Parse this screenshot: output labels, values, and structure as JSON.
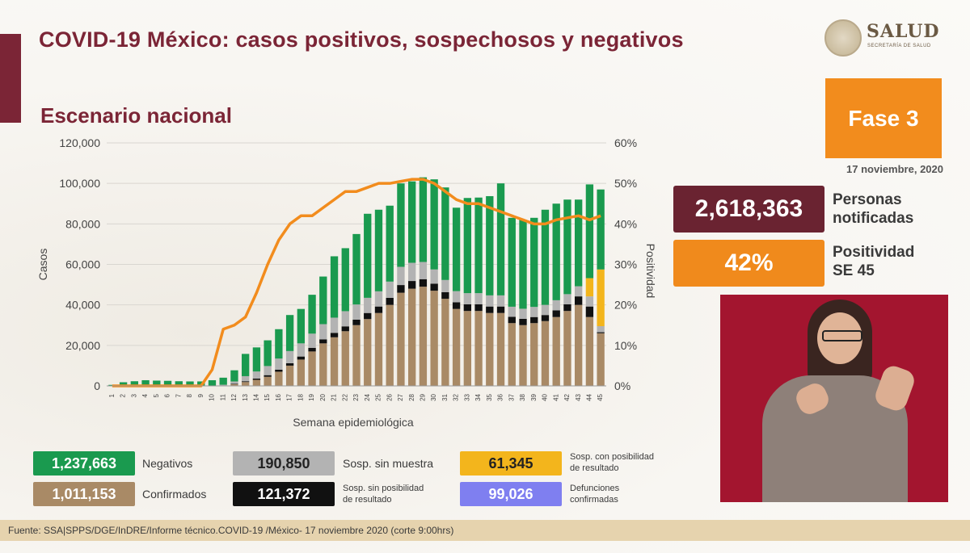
{
  "header": {
    "title": "COVID-19 México: casos positivos, sospechosos y negativos",
    "subtitle": "Escenario nacional",
    "logo_text": "SALUD",
    "logo_sub": "SECRETARÍA DE SALUD"
  },
  "phase": {
    "label": "Fase 3",
    "date": "17 noviembre, 2020"
  },
  "kpis": {
    "notificadas_value": "2,618,363",
    "notificadas_label": "Personas notificadas",
    "positividad_value": "42%",
    "positividad_label_line1": "Positividad",
    "positividad_label_line2": "SE 45"
  },
  "legend": {
    "negativos": {
      "value": "1,237,663",
      "label": "Negativos"
    },
    "confirmados": {
      "value": "1,011,153",
      "label": "Confirmados"
    },
    "sosp_sin_muestra": {
      "value": "190,850",
      "label": "Sosp. sin muestra"
    },
    "sosp_sin_posibilidad": {
      "value": "121,372",
      "label_line1": "Sosp. sin posibilidad",
      "label_line2": "de resultado"
    },
    "sosp_con_posibilidad": {
      "value": "61,345",
      "label_line1": "Sosp. con posibilidad",
      "label_line2": "de resultado"
    },
    "defunciones": {
      "value": "99,026",
      "label_line1": "Defunciones",
      "label_line2": "confirmadas"
    }
  },
  "footer": {
    "text": "Fuente: SSA|SPPS/DGE/InDRE/Informe técnico.COVID-19 /México- 17 noviembre 2020 (corte 9:00hrs)"
  },
  "colors": {
    "confirmados": "#a98a66",
    "sosp_sin_posibilidad": "#111111",
    "sosp_sin_muestra": "#b3b3b3",
    "negativos": "#1a9a4f",
    "sosp_con_posibilidad": "#f3b51c",
    "positividad": "#f28c1d"
  },
  "chart_data": {
    "type": "bar",
    "stacked": true,
    "xlabel": "Semana epidemiológica",
    "ylabel": "Casos",
    "y2label": "Positividad",
    "ylim": [
      0,
      120000
    ],
    "y2lim": [
      0,
      60
    ],
    "yticks": [
      "0",
      "20,000",
      "40,000",
      "60,000",
      "80,000",
      "100,000",
      "120,000"
    ],
    "y2ticks": [
      "0%",
      "10%",
      "20%",
      "30%",
      "40%",
      "50%",
      "60%"
    ],
    "categories": [
      "1",
      "2",
      "3",
      "4",
      "5",
      "6",
      "7",
      "8",
      "9",
      "10",
      "11",
      "12",
      "13",
      "14",
      "15",
      "16",
      "17",
      "18",
      "19",
      "20",
      "21",
      "22",
      "23",
      "24",
      "25",
      "26",
      "27",
      "28",
      "29",
      "30",
      "31",
      "32",
      "33",
      "34",
      "35",
      "36",
      "37",
      "38",
      "39",
      "40",
      "41",
      "42",
      "43",
      "44",
      "45"
    ],
    "series": [
      {
        "name": "Confirmados",
        "values": [
          0,
          0,
          0,
          0,
          0,
          0,
          0,
          0,
          0,
          0,
          200,
          800,
          1900,
          3000,
          4500,
          7000,
          10000,
          13000,
          17000,
          21000,
          24000,
          27000,
          30000,
          33000,
          36000,
          40000,
          46000,
          48000,
          49000,
          47000,
          43000,
          38000,
          37000,
          37000,
          36000,
          36000,
          31000,
          30000,
          31000,
          32000,
          34000,
          37000,
          40000,
          34000,
          26000
        ]
      },
      {
        "name": "Sosp. sin posibilidad de resultado",
        "values": [
          0,
          0,
          0,
          0,
          0,
          0,
          0,
          0,
          0,
          0,
          50,
          200,
          400,
          600,
          800,
          1000,
          1200,
          1500,
          1800,
          2000,
          2200,
          2400,
          2700,
          3000,
          3200,
          3500,
          3800,
          3800,
          3700,
          3500,
          3300,
          3300,
          3300,
          3300,
          3200,
          3200,
          3100,
          3100,
          3000,
          3000,
          3300,
          3300,
          4200,
          5200,
          500
        ]
      },
      {
        "name": "Sosp. sin muestra",
        "values": [
          0,
          0,
          0,
          0,
          0,
          0,
          0,
          0,
          0,
          0,
          300,
          1200,
          2500,
          3500,
          4500,
          5500,
          6000,
          6500,
          7000,
          7500,
          7500,
          7500,
          7500,
          7500,
          7500,
          8000,
          9000,
          9000,
          8500,
          7000,
          6000,
          5500,
          5500,
          5500,
          5500,
          5500,
          5000,
          5000,
          5000,
          5000,
          5000,
          5000,
          5000,
          5000,
          3000
        ]
      },
      {
        "name": "Sosp. con posibilidad de resultado",
        "values": [
          0,
          0,
          0,
          0,
          0,
          0,
          0,
          0,
          0,
          0,
          0,
          0,
          0,
          0,
          0,
          0,
          0,
          0,
          0,
          0,
          0,
          0,
          0,
          0,
          0,
          0,
          0,
          0,
          0,
          0,
          0,
          0,
          0,
          0,
          0,
          0,
          0,
          0,
          0,
          0,
          0,
          0,
          0,
          9000,
          28000
        ]
      },
      {
        "name": "Negativos",
        "values": [
          500,
          1800,
          2300,
          2800,
          2600,
          2500,
          2300,
          2200,
          2200,
          2800,
          3500,
          5500,
          11000,
          11900,
          12700,
          14500,
          17800,
          17000,
          19200,
          23500,
          30300,
          31100,
          34800,
          41500,
          40300,
          37500,
          41200,
          40200,
          41800,
          44500,
          45700,
          41200,
          47000,
          47200,
          49000,
          55300,
          43900,
          43900,
          44000,
          47000,
          47700,
          46700,
          42800,
          46300,
          39500
        ]
      }
    ],
    "positividad_pct": [
      0,
      0,
      0,
      0,
      0,
      0,
      0,
      0,
      0,
      4,
      14,
      15,
      17,
      23,
      30,
      36,
      40,
      42,
      42,
      44,
      46,
      48,
      48,
      49,
      50,
      50,
      50.5,
      51,
      51,
      50,
      48,
      46,
      45,
      45,
      44,
      43,
      42,
      41,
      40,
      40,
      41,
      41.5,
      42,
      41,
      42
    ]
  }
}
